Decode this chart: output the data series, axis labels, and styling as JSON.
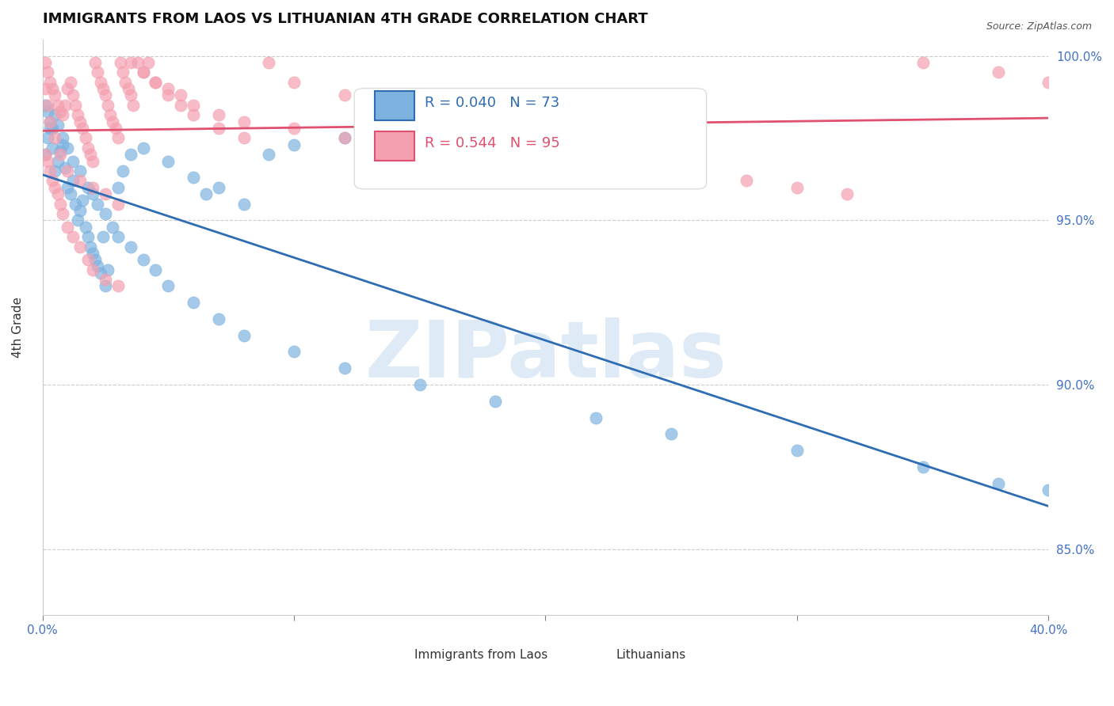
{
  "title": "IMMIGRANTS FROM LAOS VS LITHUANIAN 4TH GRADE CORRELATION CHART",
  "source": "Source: ZipAtlas.com",
  "xlabel": "",
  "ylabel": "4th Grade",
  "xlim": [
    0.0,
    0.4
  ],
  "ylim": [
    0.83,
    1.005
  ],
  "xticks": [
    0.0,
    0.1,
    0.2,
    0.3,
    0.4
  ],
  "xticklabels": [
    "0.0%",
    "",
    "",
    "",
    "40.0%"
  ],
  "yticks": [
    0.85,
    0.9,
    0.95,
    1.0
  ],
  "yticklabels": [
    "85.0%",
    "90.0%",
    "95.0%",
    "100.0%"
  ],
  "blue_R": 0.04,
  "blue_N": 73,
  "pink_R": 0.544,
  "pink_N": 95,
  "blue_color": "#7EB3E0",
  "pink_color": "#F4A0B0",
  "blue_line_color": "#2E6DB4",
  "pink_line_color": "#E05070",
  "watermark": "ZIPatlas",
  "watermark_color": "#C8DCF0",
  "legend_label_blue": "Immigrants from Laos",
  "legend_label_pink": "Lithuanians",
  "blue_scatter_x": [
    0.001,
    0.002,
    0.003,
    0.004,
    0.005,
    0.006,
    0.007,
    0.008,
    0.009,
    0.01,
    0.011,
    0.012,
    0.013,
    0.014,
    0.015,
    0.016,
    0.017,
    0.018,
    0.019,
    0.02,
    0.021,
    0.022,
    0.023,
    0.024,
    0.025,
    0.026,
    0.03,
    0.032,
    0.035,
    0.04,
    0.05,
    0.06,
    0.065,
    0.07,
    0.08,
    0.09,
    0.1,
    0.12,
    0.15,
    0.2,
    0.001,
    0.002,
    0.003,
    0.004,
    0.005,
    0.006,
    0.008,
    0.01,
    0.012,
    0.015,
    0.018,
    0.02,
    0.022,
    0.025,
    0.028,
    0.03,
    0.035,
    0.04,
    0.045,
    0.05,
    0.06,
    0.07,
    0.08,
    0.1,
    0.12,
    0.15,
    0.18,
    0.22,
    0.25,
    0.3,
    0.35,
    0.38,
    0.4
  ],
  "blue_scatter_y": [
    0.97,
    0.975,
    0.978,
    0.972,
    0.965,
    0.968,
    0.971,
    0.973,
    0.966,
    0.96,
    0.958,
    0.962,
    0.955,
    0.95,
    0.953,
    0.956,
    0.948,
    0.945,
    0.942,
    0.94,
    0.938,
    0.936,
    0.934,
    0.945,
    0.93,
    0.935,
    0.96,
    0.965,
    0.97,
    0.972,
    0.968,
    0.963,
    0.958,
    0.96,
    0.955,
    0.97,
    0.973,
    0.975,
    0.972,
    0.971,
    0.985,
    0.983,
    0.98,
    0.978,
    0.982,
    0.979,
    0.975,
    0.972,
    0.968,
    0.965,
    0.96,
    0.958,
    0.955,
    0.952,
    0.948,
    0.945,
    0.942,
    0.938,
    0.935,
    0.93,
    0.925,
    0.92,
    0.915,
    0.91,
    0.905,
    0.9,
    0.895,
    0.89,
    0.885,
    0.88,
    0.875,
    0.87,
    0.868
  ],
  "pink_scatter_x": [
    0.001,
    0.002,
    0.003,
    0.004,
    0.005,
    0.006,
    0.007,
    0.008,
    0.009,
    0.01,
    0.011,
    0.012,
    0.013,
    0.014,
    0.015,
    0.016,
    0.017,
    0.018,
    0.019,
    0.02,
    0.021,
    0.022,
    0.023,
    0.024,
    0.025,
    0.026,
    0.027,
    0.028,
    0.029,
    0.03,
    0.031,
    0.032,
    0.033,
    0.034,
    0.035,
    0.036,
    0.038,
    0.04,
    0.042,
    0.045,
    0.05,
    0.055,
    0.06,
    0.07,
    0.08,
    0.09,
    0.1,
    0.12,
    0.15,
    0.18,
    0.001,
    0.002,
    0.003,
    0.004,
    0.005,
    0.006,
    0.007,
    0.008,
    0.01,
    0.012,
    0.015,
    0.018,
    0.02,
    0.025,
    0.03,
    0.035,
    0.04,
    0.045,
    0.05,
    0.055,
    0.06,
    0.07,
    0.08,
    0.1,
    0.12,
    0.15,
    0.18,
    0.2,
    0.25,
    0.28,
    0.3,
    0.32,
    0.35,
    0.38,
    0.4,
    0.001,
    0.002,
    0.003,
    0.005,
    0.007,
    0.01,
    0.015,
    0.02,
    0.025,
    0.03
  ],
  "pink_scatter_y": [
    0.998,
    0.995,
    0.992,
    0.99,
    0.988,
    0.985,
    0.983,
    0.982,
    0.985,
    0.99,
    0.992,
    0.988,
    0.985,
    0.982,
    0.98,
    0.978,
    0.975,
    0.972,
    0.97,
    0.968,
    0.998,
    0.995,
    0.992,
    0.99,
    0.988,
    0.985,
    0.982,
    0.98,
    0.978,
    0.975,
    0.998,
    0.995,
    0.992,
    0.99,
    0.988,
    0.985,
    0.998,
    0.995,
    0.998,
    0.992,
    0.988,
    0.985,
    0.982,
    0.978,
    0.975,
    0.998,
    0.992,
    0.988,
    0.985,
    0.982,
    0.97,
    0.968,
    0.965,
    0.962,
    0.96,
    0.958,
    0.955,
    0.952,
    0.948,
    0.945,
    0.942,
    0.938,
    0.935,
    0.932,
    0.93,
    0.998,
    0.995,
    0.992,
    0.99,
    0.988,
    0.985,
    0.982,
    0.98,
    0.978,
    0.975,
    0.972,
    0.97,
    0.968,
    0.965,
    0.962,
    0.96,
    0.958,
    0.998,
    0.995,
    0.992,
    0.99,
    0.985,
    0.98,
    0.975,
    0.97,
    0.965,
    0.962,
    0.96,
    0.958,
    0.955
  ]
}
